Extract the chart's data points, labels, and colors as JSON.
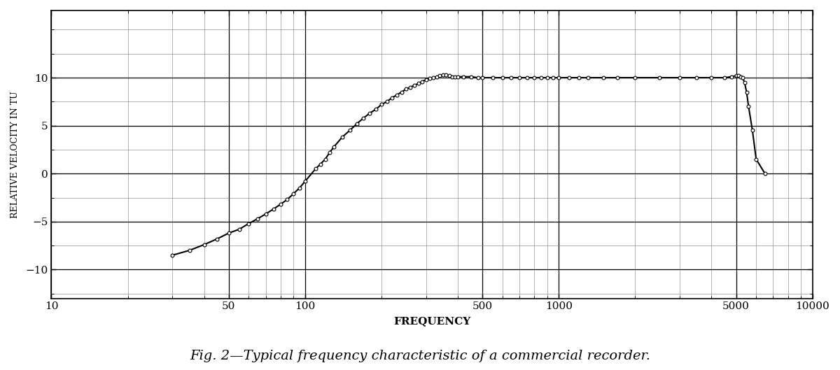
{
  "title": "Fig. 2—Typical frequency characteristic of a commercial recorder.",
  "xlabel": "FREQUENCY",
  "ylabel": "RELATIVE VELOCITY IN TU",
  "xmin": 10,
  "xmax": 10000,
  "ymin": -13,
  "ymax": 17,
  "yticks": [
    -10,
    -5,
    0,
    5,
    10
  ],
  "line_color": "#000000",
  "marker_color": "#ffffff",
  "marker_edge_color": "#000000",
  "background_color": "#ffffff",
  "grid_color": "#555555",
  "grid_color_major": "#000000",
  "data_x": [
    30,
    35,
    40,
    45,
    50,
    55,
    60,
    65,
    70,
    75,
    80,
    85,
    90,
    95,
    100,
    110,
    115,
    120,
    125,
    130,
    140,
    150,
    160,
    170,
    180,
    190,
    200,
    210,
    220,
    230,
    240,
    250,
    260,
    270,
    280,
    290,
    300,
    310,
    320,
    330,
    340,
    350,
    360,
    370,
    380,
    390,
    400,
    420,
    450,
    480,
    500,
    550,
    600,
    650,
    700,
    750,
    800,
    850,
    900,
    950,
    1000,
    1100,
    1200,
    1300,
    1500,
    1700,
    2000,
    2500,
    3000,
    3500,
    4000,
    4500,
    4800,
    5000,
    5100,
    5200,
    5300,
    5400,
    5500,
    5600,
    5800,
    6000,
    6500
  ],
  "data_y": [
    -8.5,
    -8.0,
    -7.4,
    -6.8,
    -6.2,
    -5.8,
    -5.2,
    -4.7,
    -4.2,
    -3.7,
    -3.2,
    -2.7,
    -2.1,
    -1.5,
    -0.8,
    0.5,
    1.0,
    1.5,
    2.2,
    2.8,
    3.8,
    4.5,
    5.2,
    5.8,
    6.3,
    6.7,
    7.2,
    7.5,
    7.9,
    8.2,
    8.5,
    8.8,
    9.0,
    9.2,
    9.4,
    9.6,
    9.8,
    9.9,
    10.0,
    10.1,
    10.2,
    10.3,
    10.3,
    10.2,
    10.1,
    10.1,
    10.1,
    10.1,
    10.1,
    10.0,
    10.0,
    10.0,
    10.0,
    10.0,
    10.0,
    10.0,
    10.0,
    10.0,
    10.0,
    10.0,
    10.0,
    10.0,
    10.0,
    10.0,
    10.0,
    10.0,
    10.0,
    10.0,
    10.0,
    10.0,
    10.0,
    10.0,
    10.1,
    10.2,
    10.2,
    10.1,
    10.0,
    9.5,
    8.5,
    7.0,
    4.5,
    1.5,
    0.0
  ]
}
